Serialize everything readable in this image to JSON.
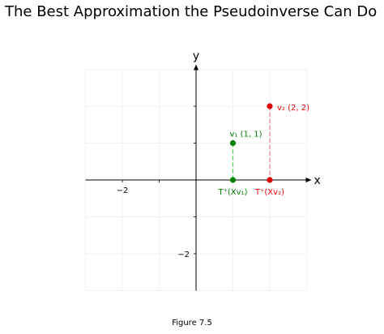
{
  "figure": {
    "title": "The Best Approximation the Pseudoinverse Can Do",
    "caption": "Figure 7.5"
  },
  "chart_data": {
    "type": "scatter",
    "title": "The Best Approximation the Pseudoinverse Can Do",
    "xlabel": "x",
    "ylabel": "y",
    "xlim": [
      -3,
      3
    ],
    "ylim": [
      -3,
      3
    ],
    "xticks": [
      -2
    ],
    "yticks": [
      -2
    ],
    "xtick_labels": [
      "−2"
    ],
    "ytick_labels": [
      "−2"
    ],
    "grid": true,
    "series": [
      {
        "color": "#008000",
        "points": [
          {
            "x": 1,
            "y": 1,
            "label": "v₁ (1, 1)"
          },
          {
            "x": 1,
            "y": 0,
            "label": "T⁺(Xv₁)"
          }
        ]
      },
      {
        "color": "#e00000",
        "points": [
          {
            "x": 2,
            "y": 2,
            "label": "v₂ (2, 2)"
          },
          {
            "x": 2,
            "y": 0,
            "label": "T⁺(Xv₂)"
          }
        ]
      }
    ],
    "dashed_links": [
      {
        "from": [
          1,
          1
        ],
        "to": [
          1,
          0
        ],
        "color": "#66cc66"
      },
      {
        "from": [
          2,
          2
        ],
        "to": [
          2,
          0
        ],
        "color": "#f08080"
      }
    ]
  }
}
